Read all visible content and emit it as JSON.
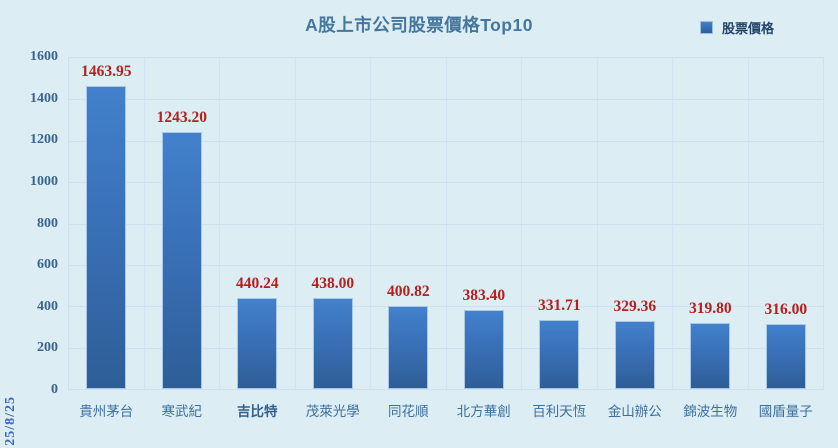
{
  "title": "A股上市公司股票價格Top10",
  "legend": {
    "label": "股票價格",
    "marker_color": "#2e6db4"
  },
  "date_stamp": "25/8/25",
  "colors": {
    "background": "#dcedf3",
    "title": "#44769e",
    "bar_top": "#4281cc",
    "bar_bottom": "#2e5e97",
    "bar_border": "#a9c8e8",
    "value_label": "#b3201e",
    "axis_label": "#3a6390",
    "category_label": "#3d6f9e",
    "gridline": "#cfe1f0",
    "date_stamp": "#3767c0"
  },
  "chart_data": {
    "type": "bar",
    "title": "A股上市公司股票價格Top10",
    "series_name": "股票價格",
    "categories": [
      "貴州茅台",
      "寒武紀",
      "吉比特",
      "茂萊光學",
      "同花順",
      "北方華創",
      "百利天恆",
      "金山辦公",
      "錦波生物",
      "國盾量子"
    ],
    "values": [
      1463.95,
      1243.2,
      440.24,
      438.0,
      400.82,
      383.4,
      331.71,
      329.36,
      319.8,
      316.0
    ],
    "value_labels": [
      "1463.95",
      "1243.20",
      "440.24",
      "438.00",
      "400.82",
      "383.40",
      "331.71",
      "329.36",
      "319.80",
      "316.00"
    ],
    "bold_categories": [
      "吉比特"
    ],
    "xlabel": "",
    "ylabel": "",
    "ylim": [
      0,
      1600
    ],
    "yticks": [
      0,
      200,
      400,
      600,
      800,
      1000,
      1200,
      1400,
      1600
    ],
    "grid": true,
    "legend_position": "top-right"
  }
}
